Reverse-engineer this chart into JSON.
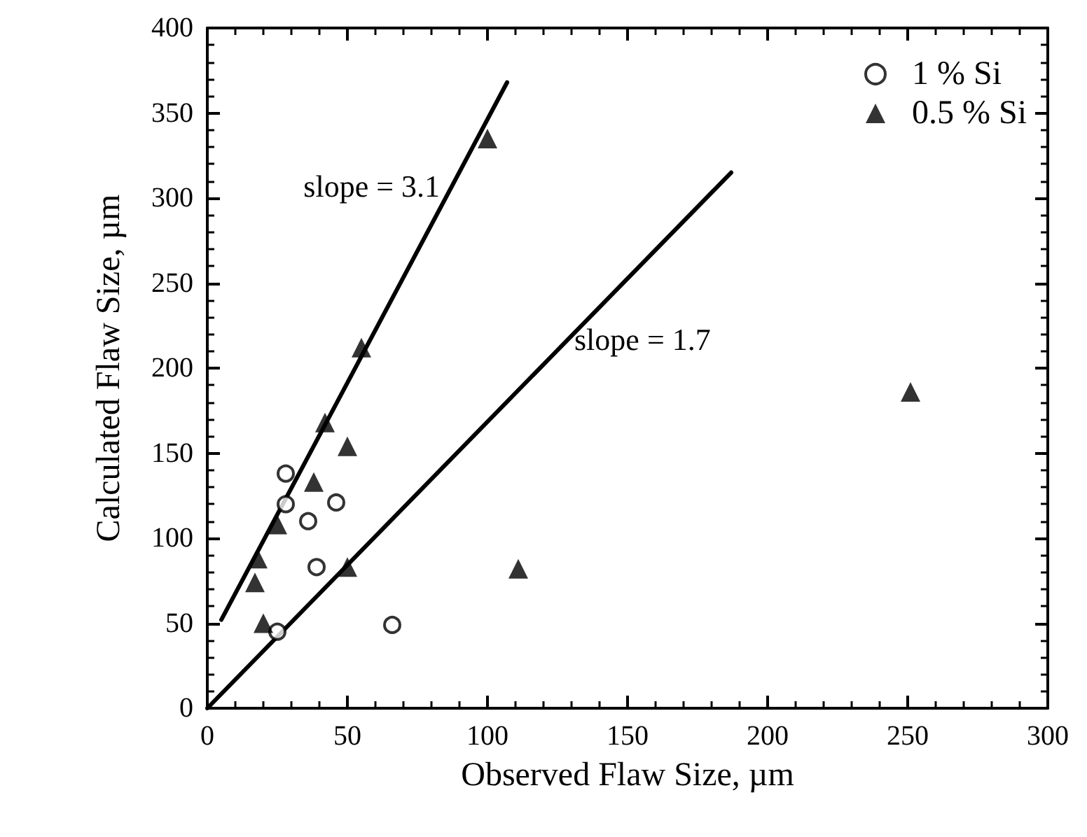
{
  "chart_data": {
    "type": "scatter",
    "xlabel": "Observed Flaw Size, µm",
    "ylabel": "Calculated Flaw Size, µm",
    "xlim": [
      0,
      300
    ],
    "xticks": [
      0,
      50,
      100,
      150,
      200,
      250,
      300
    ],
    "ylim": [
      0,
      400
    ],
    "yticks": [
      0,
      50,
      100,
      150,
      200,
      250,
      300,
      350,
      400
    ],
    "grid": false,
    "legend": "top right",
    "series": [
      {
        "name": "1 % Si",
        "color": "#000000",
        "marker": "circle",
        "x": [
          28,
          28,
          36,
          46,
          39,
          25,
          66
        ],
        "values": [
          138,
          120,
          110,
          121,
          83,
          45,
          49
        ]
      },
      {
        "name": "0.5 % Si",
        "color": "#000000",
        "marker": "triangle",
        "x": [
          100,
          55,
          42,
          50,
          38,
          25,
          18,
          17,
          20,
          50,
          111,
          251
        ],
        "values": [
          335,
          212,
          168,
          154,
          133,
          108,
          88,
          74,
          50,
          83,
          82,
          186
        ]
      },
      {
        "type": "line",
        "color": "#000000",
        "marker": "none",
        "line_style": "solid",
        "x": [
          5,
          107
        ],
        "values": [
          52,
          368
        ]
      },
      {
        "type": "line",
        "color": "#000000",
        "marker": "none",
        "line_style": "solid",
        "x": [
          0,
          187
        ],
        "values": [
          0,
          315
        ]
      }
    ],
    "annotations": [
      {
        "text": "slope = 3.1",
        "x": 87,
        "y": 307
      },
      {
        "text": "slope = 1.7",
        "x": 129,
        "y": 217
      }
    ]
  }
}
